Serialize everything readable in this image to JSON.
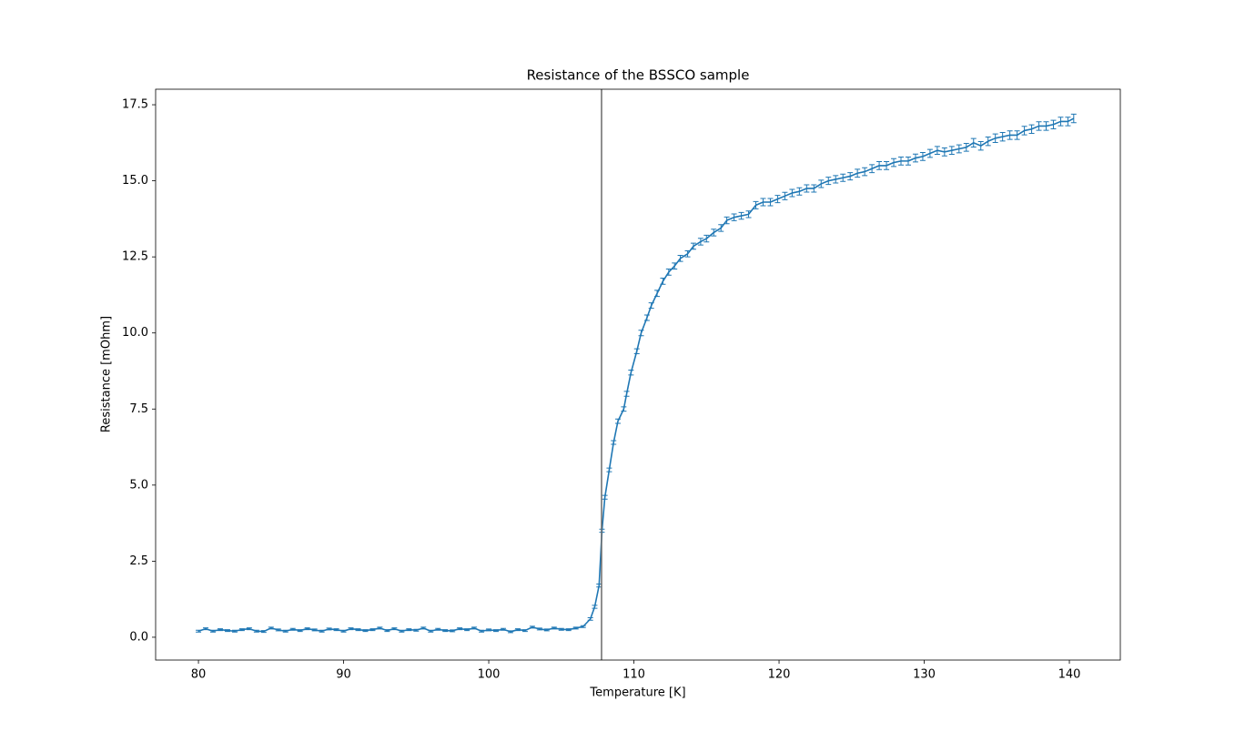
{
  "chart_data": {
    "type": "errorbar",
    "title": "Resistance of the BSSCO sample",
    "xlabel": "Temperature [K]",
    "ylabel": "Resistance [mOhm]",
    "color": "#1f77b4",
    "vline": 107.77,
    "vline_color": "#6b6b6b",
    "xlim": [
      77.05,
      143.51
    ],
    "ylim": [
      -0.75,
      18.01
    ],
    "xticks": [
      80,
      90,
      100,
      110,
      120,
      130,
      140
    ],
    "yticks": [
      {
        "value": 0,
        "label": "0.0"
      },
      2.5,
      {
        "value": 5,
        "label": "5.0"
      },
      7.5,
      {
        "value": 10,
        "label": "10.0"
      },
      12.5,
      {
        "value": 15,
        "label": "15.0"
      },
      17.5
    ],
    "x": [
      80,
      80.5,
      81,
      81.5,
      82,
      82.5,
      83,
      83.5,
      84,
      84.5,
      85,
      85.5,
      86,
      86.5,
      87,
      87.5,
      88,
      88.5,
      89,
      89.5,
      90,
      90.5,
      91,
      91.5,
      92,
      92.5,
      93,
      93.5,
      94,
      94.5,
      95,
      95.5,
      96,
      96.5,
      97,
      97.5,
      98,
      98.5,
      99,
      99.5,
      100,
      100.5,
      101,
      101.5,
      102,
      102.5,
      103,
      103.5,
      104,
      104.5,
      105,
      105.5,
      106,
      106.5,
      107,
      107.3,
      107.6,
      107.8,
      108,
      108.3,
      108.6,
      108.9,
      109.3,
      109.5,
      109.8,
      110.2,
      110.5,
      110.9,
      111.2,
      111.6,
      112,
      112.4,
      112.8,
      113.2,
      113.7,
      114.1,
      114.6,
      115,
      115.5,
      116,
      116.4,
      116.9,
      117.4,
      117.9,
      118.4,
      118.9,
      119.4,
      119.9,
      120.4,
      120.9,
      121.4,
      121.9,
      122.4,
      122.9,
      123.4,
      123.9,
      124.4,
      124.9,
      125.4,
      125.9,
      126.4,
      126.9,
      127.4,
      127.9,
      128.4,
      128.9,
      129.4,
      129.9,
      130.4,
      130.9,
      131.4,
      131.9,
      132.4,
      132.9,
      133.4,
      133.9,
      134.4,
      134.9,
      135.4,
      135.9,
      136.4,
      136.9,
      137.4,
      137.9,
      138.4,
      138.9,
      139.4,
      139.9,
      140.3
    ],
    "values": [
      0.2,
      0.28,
      0.2,
      0.25,
      0.22,
      0.2,
      0.25,
      0.28,
      0.2,
      0.19,
      0.3,
      0.24,
      0.2,
      0.26,
      0.22,
      0.28,
      0.24,
      0.2,
      0.27,
      0.25,
      0.2,
      0.28,
      0.25,
      0.22,
      0.25,
      0.3,
      0.22,
      0.28,
      0.2,
      0.25,
      0.23,
      0.3,
      0.2,
      0.26,
      0.22,
      0.21,
      0.28,
      0.25,
      0.3,
      0.2,
      0.24,
      0.22,
      0.26,
      0.18,
      0.25,
      0.22,
      0.33,
      0.27,
      0.24,
      0.3,
      0.26,
      0.25,
      0.3,
      0.35,
      0.6,
      1.0,
      1.7,
      3.5,
      4.6,
      5.5,
      6.4,
      7.1,
      7.5,
      8.0,
      8.7,
      9.4,
      10.0,
      10.5,
      10.9,
      11.3,
      11.7,
      12.0,
      12.2,
      12.45,
      12.6,
      12.85,
      13.0,
      13.1,
      13.3,
      13.45,
      13.7,
      13.8,
      13.85,
      13.9,
      14.2,
      14.3,
      14.3,
      14.4,
      14.5,
      14.6,
      14.65,
      14.75,
      14.75,
      14.9,
      15.0,
      15.05,
      15.1,
      15.15,
      15.25,
      15.3,
      15.4,
      15.5,
      15.5,
      15.6,
      15.65,
      15.65,
      15.75,
      15.8,
      15.9,
      16.0,
      15.95,
      16.0,
      16.05,
      16.1,
      16.25,
      16.15,
      16.3,
      16.4,
      16.45,
      16.5,
      16.5,
      16.65,
      16.7,
      16.8,
      16.8,
      16.85,
      16.95,
      16.95,
      17.05
    ],
    "errors": [
      0.03,
      0.03,
      0.03,
      0.03,
      0.03,
      0.03,
      0.03,
      0.03,
      0.03,
      0.03,
      0.03,
      0.03,
      0.03,
      0.03,
      0.03,
      0.03,
      0.03,
      0.03,
      0.03,
      0.03,
      0.03,
      0.03,
      0.03,
      0.03,
      0.03,
      0.03,
      0.03,
      0.03,
      0.03,
      0.03,
      0.03,
      0.03,
      0.03,
      0.03,
      0.03,
      0.03,
      0.03,
      0.03,
      0.03,
      0.03,
      0.03,
      0.03,
      0.03,
      0.03,
      0.03,
      0.03,
      0.03,
      0.03,
      0.03,
      0.03,
      0.03,
      0.03,
      0.03,
      0.03,
      0.04,
      0.05,
      0.05,
      0.05,
      0.06,
      0.06,
      0.06,
      0.07,
      0.07,
      0.08,
      0.08,
      0.08,
      0.09,
      0.09,
      0.09,
      0.1,
      0.1,
      0.1,
      0.1,
      0.1,
      0.1,
      0.1,
      0.11,
      0.11,
      0.11,
      0.11,
      0.11,
      0.11,
      0.11,
      0.11,
      0.12,
      0.12,
      0.12,
      0.12,
      0.12,
      0.12,
      0.12,
      0.12,
      0.12,
      0.12,
      0.12,
      0.12,
      0.12,
      0.12,
      0.13,
      0.13,
      0.13,
      0.13,
      0.13,
      0.13,
      0.13,
      0.13,
      0.13,
      0.13,
      0.13,
      0.13,
      0.13,
      0.13,
      0.13,
      0.13,
      0.14,
      0.14,
      0.14,
      0.14,
      0.14,
      0.14,
      0.14,
      0.14,
      0.14,
      0.14,
      0.14,
      0.14,
      0.14,
      0.14,
      0.14
    ]
  }
}
